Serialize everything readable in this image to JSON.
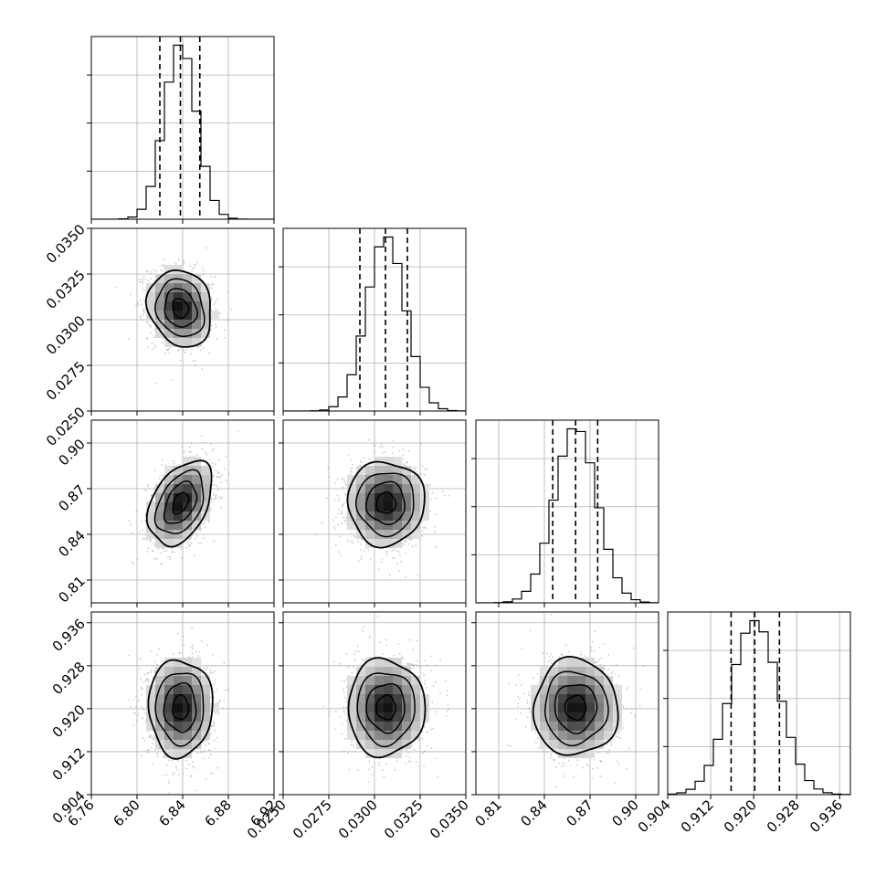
{
  "chart_data": {
    "type": "corner",
    "variables": [
      {
        "range": [
          6.76,
          6.92
        ],
        "ticks": [
          "6.76",
          "6.80",
          "6.84",
          "6.88",
          "6.92"
        ],
        "mean": 6.838,
        "sd": 0.014,
        "quantiles": [
          6.82,
          6.838,
          6.855
        ]
      },
      {
        "range": [
          0.025,
          0.035
        ],
        "ticks": [
          "0.0250",
          "0.0275",
          "0.0300",
          "0.0325",
          "0.0350"
        ],
        "mean": 0.03063,
        "sd": 0.00105,
        "quantiles": [
          0.0292,
          0.0306,
          0.0318
        ]
      },
      {
        "range": [
          0.795,
          0.915
        ],
        "ticks": [
          "0.81",
          "0.84",
          "0.87",
          "0.90"
        ],
        "mean": 0.8605,
        "sd": 0.0138,
        "quantiles": [
          0.8455,
          0.8605,
          0.875
        ]
      },
      {
        "range": [
          0.904,
          0.938
        ],
        "ticks": [
          "0.904",
          "0.912",
          "0.920",
          "0.928",
          "0.936"
        ],
        "mean": 0.9202,
        "sd": 0.0045,
        "quantiles": [
          0.9158,
          0.9202,
          0.9248
        ]
      }
    ],
    "correlations": [
      {
        "pair": [
          0,
          1
        ],
        "rho": -0.15
      },
      {
        "pair": [
          0,
          2
        ],
        "rho": 0.4
      },
      {
        "pair": [
          0,
          3
        ],
        "rho": 0.0
      },
      {
        "pair": [
          1,
          2
        ],
        "rho": 0.0
      },
      {
        "pair": [
          1,
          3
        ],
        "rho": 0.0
      },
      {
        "pair": [
          2,
          3
        ],
        "rho": 0.0
      }
    ],
    "histogram_bins": 20,
    "contour_levels_sigma": [
      0.5,
      1.0,
      1.5,
      2.0
    ],
    "grid": true,
    "colors": {
      "line": "#000000",
      "points": "#9e9e9e",
      "grid": "#b0b0b0"
    }
  }
}
